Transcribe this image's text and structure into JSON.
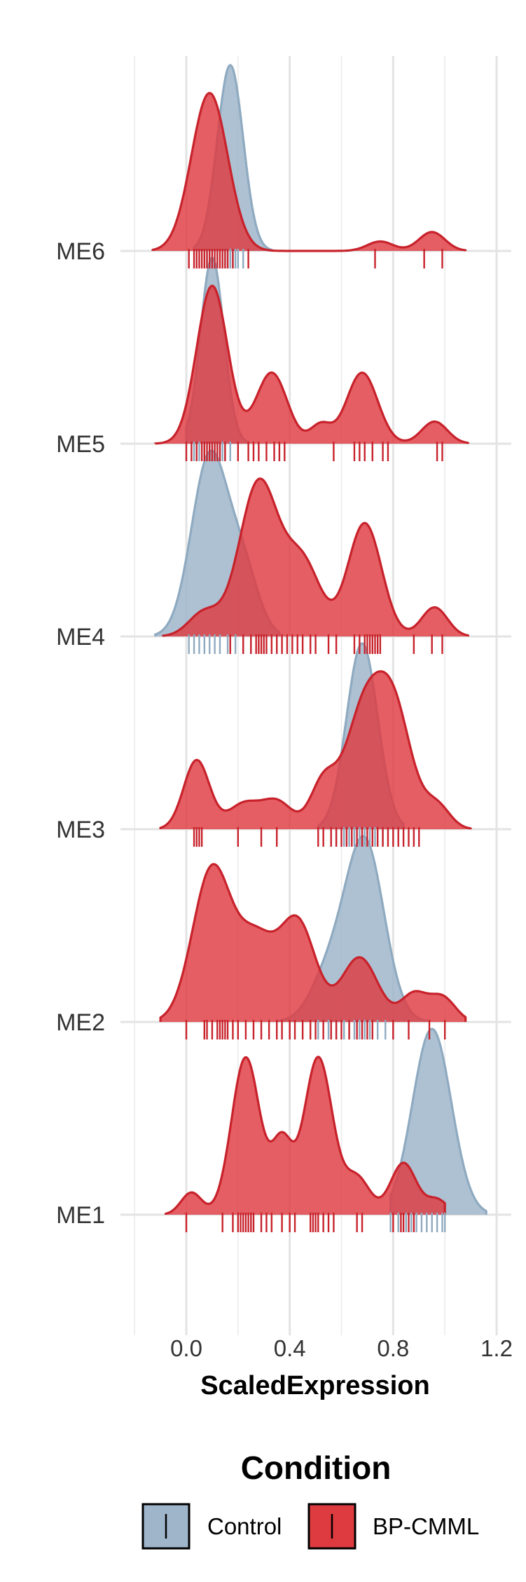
{
  "chart_data": {
    "type": "ridgeline-density",
    "xlabel": "ScaledExpression",
    "xlim": [
      -0.2,
      1.22
    ],
    "x_ticks": [
      "0.0",
      "0.4",
      "0.8",
      "1.2"
    ],
    "x_tick_values": [
      0.0,
      0.4,
      0.8,
      1.2
    ],
    "categories": [
      "ME1",
      "ME2",
      "ME3",
      "ME4",
      "ME5",
      "ME6"
    ],
    "grid": true,
    "legend": {
      "title": "Condition",
      "position": "bottom",
      "entries": [
        {
          "label": "Control",
          "color": "#9FB6CA"
        },
        {
          "label": "BP-CMML",
          "color": "#DE3B41"
        }
      ]
    },
    "colors": {
      "control_fill": "#9FB6CA",
      "control_line": "#8FAAC0",
      "bpcmml_fill": "#DE3B41",
      "bpcmml_line": "#C8222B"
    },
    "series": [
      {
        "name": "Control",
        "densities": {
          "ME1": {
            "range": [
              0.79,
              1.16
            ],
            "components": [
              [
                0.95,
                0.075,
                1.0
              ]
            ]
          },
          "ME2": {
            "range": [
              0.35,
              0.93
            ],
            "components": [
              [
                0.69,
                0.075,
                1.0
              ],
              [
                0.55,
                0.07,
                0.25
              ]
            ]
          },
          "ME3": {
            "range": [
              0.51,
              0.84
            ],
            "components": [
              [
                0.68,
                0.06,
                1.0
              ]
            ]
          },
          "ME4": {
            "range": [
              -0.12,
              0.36
            ],
            "components": [
              [
                0.09,
                0.07,
                1.0
              ],
              [
                0.22,
                0.06,
                0.35
              ]
            ]
          },
          "ME5": {
            "range": [
              0.0,
              0.24
            ],
            "components": [
              [
                0.1,
                0.045,
                1.0
              ]
            ]
          },
          "ME6": {
            "range": [
              0.03,
              0.33
            ],
            "components": [
              [
                0.17,
                0.05,
                1.0
              ]
            ]
          }
        },
        "rugs": {
          "ME1": [
            0.79,
            0.82,
            0.85,
            0.87,
            0.89,
            0.91,
            0.93,
            0.95,
            0.97,
            0.99,
            1.0
          ],
          "ME2": [
            0.51,
            0.55,
            0.58,
            0.61,
            0.63,
            0.65,
            0.67,
            0.69,
            0.71,
            0.74,
            0.77
          ],
          "ME3": [
            0.58,
            0.61,
            0.63,
            0.65,
            0.67,
            0.69,
            0.71,
            0.73,
            0.76
          ],
          "ME4": [
            0.01,
            0.03,
            0.05,
            0.07,
            0.09,
            0.11,
            0.13,
            0.16,
            0.19,
            0.22,
            0.25
          ],
          "ME5": [
            0.03,
            0.05,
            0.07,
            0.09,
            0.1,
            0.11,
            0.12,
            0.13,
            0.14,
            0.15,
            0.17
          ],
          "ME6": [
            0.08,
            0.1,
            0.12,
            0.14,
            0.15,
            0.16,
            0.17,
            0.18,
            0.19,
            0.2,
            0.22
          ]
        }
      },
      {
        "name": "BP-CMML",
        "densities": {
          "ME1": {
            "range": [
              -0.08,
              1.0
            ],
            "components": [
              [
                0.02,
                0.04,
                0.12
              ],
              [
                0.23,
                0.055,
                0.85
              ],
              [
                0.37,
                0.04,
                0.38
              ],
              [
                0.51,
                0.055,
                0.85
              ],
              [
                0.66,
                0.05,
                0.2
              ],
              [
                0.84,
                0.05,
                0.28
              ],
              [
                0.97,
                0.04,
                0.08
              ]
            ]
          },
          "ME2": {
            "range": [
              -0.1,
              1.08
            ],
            "components": [
              [
                0.1,
                0.075,
                1.0
              ],
              [
                0.27,
                0.07,
                0.5
              ],
              [
                0.43,
                0.07,
                0.65
              ],
              [
                0.67,
                0.07,
                0.42
              ],
              [
                0.88,
                0.05,
                0.18
              ],
              [
                0.99,
                0.05,
                0.16
              ]
            ]
          },
          "ME3": {
            "range": [
              -0.1,
              1.1
            ],
            "components": [
              [
                0.04,
                0.05,
                0.45
              ],
              [
                0.22,
                0.06,
                0.16
              ],
              [
                0.35,
                0.06,
                0.18
              ],
              [
                0.53,
                0.05,
                0.3
              ],
              [
                0.68,
                0.07,
                0.7
              ],
              [
                0.8,
                0.07,
                0.78
              ],
              [
                0.97,
                0.05,
                0.15
              ]
            ]
          },
          "ME4": {
            "range": [
              -0.09,
              1.09
            ],
            "components": [
              [
                0.07,
                0.06,
                0.15
              ],
              [
                0.28,
                0.075,
                0.95
              ],
              [
                0.45,
                0.07,
                0.45
              ],
              [
                0.69,
                0.065,
                0.7
              ],
              [
                0.96,
                0.05,
                0.18
              ]
            ]
          },
          "ME5": {
            "range": [
              -0.12,
              1.09
            ],
            "components": [
              [
                0.1,
                0.06,
                1.0
              ],
              [
                0.33,
                0.06,
                0.45
              ],
              [
                0.52,
                0.04,
                0.12
              ],
              [
                0.68,
                0.06,
                0.45
              ],
              [
                0.96,
                0.05,
                0.14
              ]
            ]
          },
          "ME6": {
            "range": [
              -0.13,
              1.08
            ],
            "components": [
              [
                0.09,
                0.07,
                1.0
              ],
              [
                0.75,
                0.05,
                0.06
              ],
              [
                0.95,
                0.05,
                0.12
              ]
            ]
          }
        },
        "rugs": {
          "ME1": [
            0.0,
            0.14,
            0.18,
            0.2,
            0.21,
            0.22,
            0.23,
            0.24,
            0.25,
            0.26,
            0.29,
            0.31,
            0.33,
            0.37,
            0.4,
            0.42,
            0.48,
            0.49,
            0.5,
            0.51,
            0.53,
            0.55,
            0.57,
            0.66,
            0.68,
            0.8,
            0.83,
            0.84,
            0.86,
            0.88
          ],
          "ME2": [
            0.0,
            0.07,
            0.08,
            0.1,
            0.12,
            0.13,
            0.14,
            0.15,
            0.16,
            0.18,
            0.2,
            0.23,
            0.26,
            0.29,
            0.32,
            0.35,
            0.37,
            0.4,
            0.42,
            0.45,
            0.48,
            0.5,
            0.53,
            0.56,
            0.58,
            0.6,
            0.63,
            0.66,
            0.68,
            0.7,
            0.72,
            0.8,
            0.86,
            0.94,
            1.0
          ],
          "ME3": [
            0.03,
            0.04,
            0.05,
            0.06,
            0.2,
            0.29,
            0.35,
            0.51,
            0.53,
            0.56,
            0.58,
            0.6,
            0.62,
            0.64,
            0.66,
            0.68,
            0.7,
            0.72,
            0.74,
            0.76,
            0.78,
            0.8,
            0.82,
            0.84,
            0.86,
            0.88,
            0.9
          ],
          "ME4": [
            0.17,
            0.22,
            0.25,
            0.27,
            0.28,
            0.29,
            0.3,
            0.31,
            0.33,
            0.35,
            0.37,
            0.39,
            0.41,
            0.43,
            0.45,
            0.48,
            0.5,
            0.55,
            0.58,
            0.65,
            0.67,
            0.69,
            0.7,
            0.71,
            0.72,
            0.73,
            0.74,
            0.75,
            0.88,
            0.95,
            0.99
          ],
          "ME5": [
            0.0,
            0.02,
            0.04,
            0.06,
            0.07,
            0.08,
            0.09,
            0.1,
            0.11,
            0.12,
            0.13,
            0.15,
            0.2,
            0.24,
            0.26,
            0.28,
            0.31,
            0.34,
            0.36,
            0.38,
            0.57,
            0.65,
            0.67,
            0.69,
            0.72,
            0.76,
            0.78,
            0.97,
            0.99
          ],
          "ME6": [
            0.01,
            0.03,
            0.04,
            0.05,
            0.06,
            0.07,
            0.08,
            0.09,
            0.1,
            0.11,
            0.12,
            0.13,
            0.14,
            0.15,
            0.16,
            0.18,
            0.24,
            0.73,
            0.92,
            0.99
          ]
        }
      }
    ]
  }
}
